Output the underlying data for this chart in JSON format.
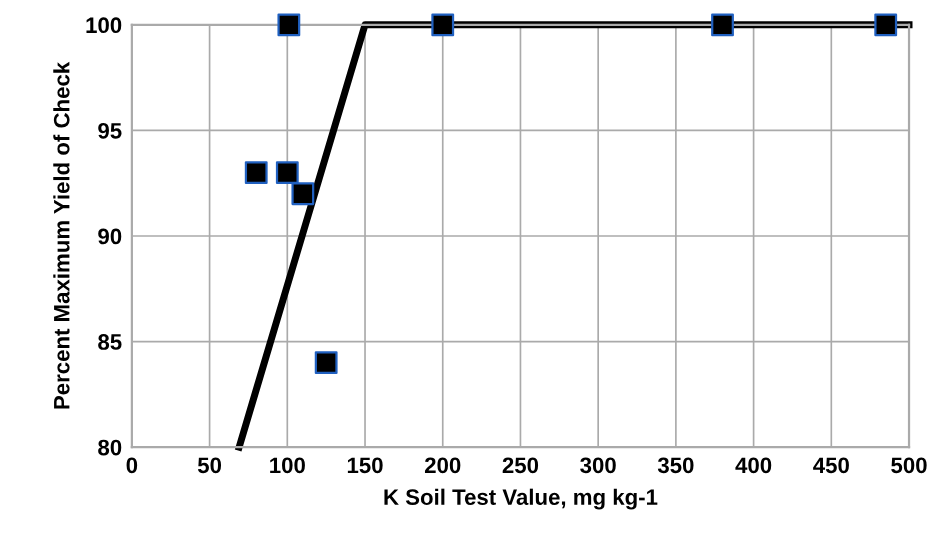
{
  "chart_data": {
    "type": "scatter",
    "xlabel": "K Soil Test Value, mg kg-1",
    "ylabel": "Percent Maximum Yield of Check",
    "xlim": [
      0,
      500
    ],
    "ylim": [
      80,
      100
    ],
    "xticks": [
      0,
      50,
      100,
      150,
      200,
      250,
      300,
      350,
      400,
      450,
      500
    ],
    "yticks": [
      80,
      85,
      90,
      95,
      100
    ],
    "grid": true,
    "legend": false,
    "marker": "square",
    "series": [
      {
        "color": "#000000",
        "x": [
          80,
          100,
          110,
          125,
          101,
          200,
          380,
          485
        ],
        "values": [
          93,
          93,
          92,
          84,
          100,
          100,
          100,
          100
        ]
      },
      {
        "type": "line",
        "color": "#000000",
        "x": [
          69,
          150,
          500
        ],
        "values": [
          80,
          100,
          100
        ],
        "marker": "none",
        "line_style": "solid"
      }
    ]
  }
}
